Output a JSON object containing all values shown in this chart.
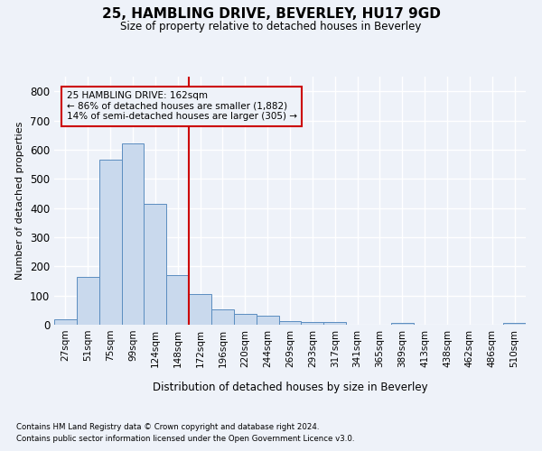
{
  "title": "25, HAMBLING DRIVE, BEVERLEY, HU17 9GD",
  "subtitle": "Size of property relative to detached houses in Beverley",
  "xlabel": "Distribution of detached houses by size in Beverley",
  "ylabel": "Number of detached properties",
  "footnote1": "Contains HM Land Registry data © Crown copyright and database right 2024.",
  "footnote2": "Contains public sector information licensed under the Open Government Licence v3.0.",
  "bar_labels": [
    "27sqm",
    "51sqm",
    "75sqm",
    "99sqm",
    "124sqm",
    "148sqm",
    "172sqm",
    "196sqm",
    "220sqm",
    "244sqm",
    "269sqm",
    "293sqm",
    "317sqm",
    "341sqm",
    "365sqm",
    "389sqm",
    "413sqm",
    "438sqm",
    "462sqm",
    "486sqm",
    "510sqm"
  ],
  "bar_values": [
    18,
    165,
    565,
    620,
    415,
    170,
    105,
    52,
    38,
    30,
    13,
    10,
    8,
    0,
    0,
    7,
    0,
    0,
    0,
    0,
    7
  ],
  "bar_color": "#c9d9ed",
  "bar_edge_color": "#5b8dc0",
  "ylim": [
    0,
    850
  ],
  "yticks": [
    0,
    100,
    200,
    300,
    400,
    500,
    600,
    700,
    800
  ],
  "red_line_x": 5.5,
  "annotation_text_line1": "25 HAMBLING DRIVE: 162sqm",
  "annotation_text_line2": "← 86% of detached houses are smaller (1,882)",
  "annotation_text_line3": "14% of semi-detached houses are larger (305) →",
  "annotation_color": "#cc0000",
  "background_color": "#eef2f9",
  "grid_color": "#ffffff"
}
